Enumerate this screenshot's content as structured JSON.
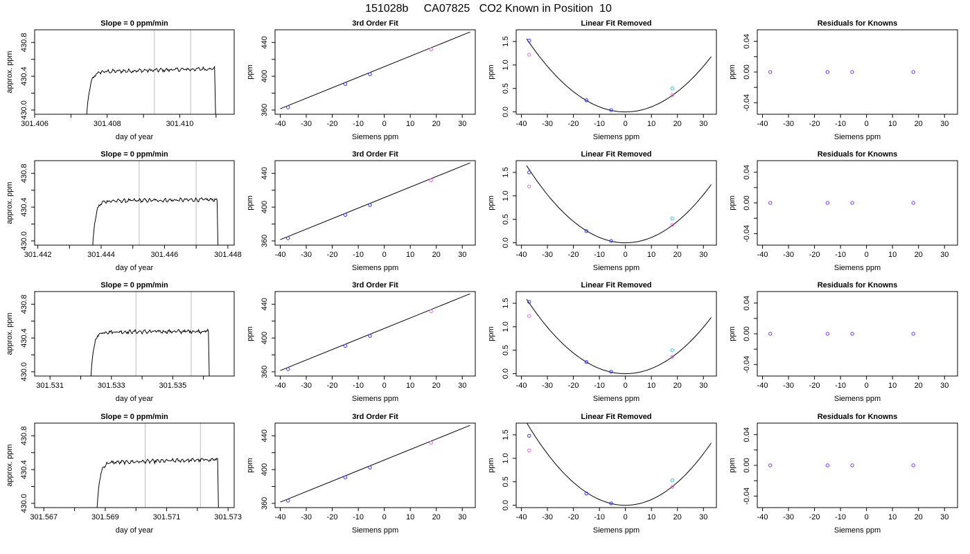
{
  "figure": {
    "title": "151028b     CA07825   CO2 Known in Position  10"
  },
  "chart_data": [
    {
      "type": "line",
      "panel": "timeseries",
      "title": "Slope =  0  ppm/min",
      "xlabel": "day of year",
      "ylabel": "approx. ppm",
      "xlim": [
        301.406,
        301.4115
      ],
      "ylim": [
        429.95,
        430.95
      ],
      "xticks": [
        301.406,
        301.407,
        301.408,
        301.409,
        301.41,
        301.411
      ],
      "xtick_labels": [
        "301.406",
        "",
        "301.408",
        "",
        "301.410",
        ""
      ],
      "yticks": [
        430.0,
        430.2,
        430.4,
        430.6,
        430.8
      ],
      "ytick_labels": [
        "430.0",
        "",
        "430.4",
        "",
        "430.8"
      ],
      "vlines": [
        301.4093,
        301.4103
      ],
      "trace": {
        "start": 301.407,
        "end": 301.411,
        "rise": 301.4074,
        "level": 430.45,
        "drift": 0.04,
        "base": 429.7
      }
    },
    {
      "type": "line",
      "panel": "timeseries",
      "title": "Slope =  0  ppm/min",
      "xlabel": "day of year",
      "ylabel": "approx. ppm",
      "xlim": [
        301.4419,
        301.4482
      ],
      "ylim": [
        429.95,
        430.95
      ],
      "xticks": [
        301.442,
        301.443,
        301.444,
        301.445,
        301.446,
        301.447,
        301.448
      ],
      "xtick_labels": [
        "301.442",
        "",
        "301.444",
        "",
        "301.446",
        "",
        "301.448"
      ],
      "yticks": [
        430.0,
        430.2,
        430.4,
        430.6,
        430.8
      ],
      "ytick_labels": [
        "430.0",
        "",
        "430.4",
        "",
        "430.8"
      ],
      "vlines": [
        301.4452,
        301.447
      ],
      "trace": {
        "start": 301.4434,
        "end": 301.4477,
        "rise": 301.4437,
        "level": 430.47,
        "drift": 0.02,
        "base": 429.7
      }
    },
    {
      "type": "line",
      "panel": "timeseries",
      "title": "Slope =  0  ppm/min",
      "xlabel": "day of year",
      "ylabel": "approx. ppm",
      "xlim": [
        301.5305,
        301.537
      ],
      "ylim": [
        429.95,
        430.95
      ],
      "xticks": [
        301.531,
        301.532,
        301.533,
        301.534,
        301.535,
        301.536
      ],
      "xtick_labels": [
        "301.531",
        "",
        "301.533",
        "",
        "301.535",
        ""
      ],
      "yticks": [
        430.0,
        430.2,
        430.4,
        430.6,
        430.8
      ],
      "ytick_labels": [
        "430.0",
        "",
        "430.4",
        "",
        "430.8"
      ],
      "vlines": [
        301.5338,
        301.5356
      ],
      "trace": {
        "start": 301.532,
        "end": 301.5362,
        "rise": 301.5323,
        "level": 430.47,
        "drift": 0.01,
        "base": 429.7
      }
    },
    {
      "type": "line",
      "panel": "timeseries",
      "title": "Slope =  0  ppm/min",
      "xlabel": "day of year",
      "ylabel": "approx. ppm",
      "xlim": [
        301.5667,
        301.5732
      ],
      "ylim": [
        429.95,
        430.95
      ],
      "xticks": [
        301.567,
        301.568,
        301.569,
        301.57,
        301.571,
        301.572,
        301.573
      ],
      "xtick_labels": [
        "301.567",
        "",
        "301.569",
        "",
        "301.571",
        "",
        "301.573"
      ],
      "yticks": [
        430.0,
        430.2,
        430.4,
        430.6,
        430.8
      ],
      "ytick_labels": [
        "430.0",
        "",
        "430.4",
        "",
        "430.8"
      ],
      "vlines": [
        301.5703,
        301.5721
      ],
      "trace": {
        "start": 301.5684,
        "end": 301.5727,
        "rise": 301.5687,
        "level": 430.48,
        "drift": 0.04,
        "base": 429.7
      }
    },
    {
      "type": "scatter",
      "panel": "fit",
      "title": "3rd Order Fit",
      "xlabel": "Siemens ppm",
      "ylabel": "ppm",
      "xlim": [
        -42,
        35
      ],
      "ylim": [
        355,
        455
      ],
      "xticks": [
        -40,
        -30,
        -20,
        -10,
        0,
        10,
        20,
        30
      ],
      "yticks": [
        360,
        400,
        440
      ],
      "minor_yticks": [
        380,
        420
      ],
      "line": {
        "x": [
          -40,
          33
        ],
        "y": [
          361.5,
          452.4
        ]
      },
      "points": [
        {
          "x": -37,
          "y": 363.2,
          "color": "#3333ff"
        },
        {
          "x": -15,
          "y": 390.8,
          "color": "#3333ff"
        },
        {
          "x": -5.5,
          "y": 402.5,
          "color": "#3333ff"
        },
        {
          "x": 18,
          "y": 431.7,
          "color": "#ee66ee"
        }
      ]
    },
    {
      "type": "scatter",
      "panel": "fit",
      "title": "3rd Order Fit",
      "xlabel": "Siemens ppm",
      "ylabel": "ppm",
      "xlim": [
        -42,
        35
      ],
      "ylim": [
        355,
        455
      ],
      "xticks": [
        -40,
        -30,
        -20,
        -10,
        0,
        10,
        20,
        30
      ],
      "yticks": [
        360,
        400,
        440
      ],
      "minor_yticks": [
        380,
        420
      ],
      "line": {
        "x": [
          -40,
          33
        ],
        "y": [
          361.5,
          452.4
        ]
      },
      "points": [
        {
          "x": -37,
          "y": 363.2,
          "color": "#3333ff"
        },
        {
          "x": -15,
          "y": 390.8,
          "color": "#3333ff"
        },
        {
          "x": -5.5,
          "y": 402.5,
          "color": "#3333ff"
        },
        {
          "x": 18,
          "y": 431.7,
          "color": "#ee66ee"
        }
      ]
    },
    {
      "type": "scatter",
      "panel": "fit",
      "title": "3rd Order Fit",
      "xlabel": "Siemens ppm",
      "ylabel": "ppm",
      "xlim": [
        -42,
        35
      ],
      "ylim": [
        355,
        455
      ],
      "xticks": [
        -40,
        -30,
        -20,
        -10,
        0,
        10,
        20,
        30
      ],
      "yticks": [
        360,
        400,
        440
      ],
      "minor_yticks": [
        380,
        420
      ],
      "line": {
        "x": [
          -40,
          33
        ],
        "y": [
          361.5,
          452.4
        ]
      },
      "points": [
        {
          "x": -37,
          "y": 363.2,
          "color": "#3333ff"
        },
        {
          "x": -15,
          "y": 390.8,
          "color": "#3333ff"
        },
        {
          "x": -5.5,
          "y": 402.5,
          "color": "#3333ff"
        },
        {
          "x": 18,
          "y": 431.7,
          "color": "#ee66ee"
        }
      ]
    },
    {
      "type": "scatter",
      "panel": "fit",
      "title": "3rd Order Fit",
      "xlabel": "Siemens ppm",
      "ylabel": "ppm",
      "xlim": [
        -42,
        35
      ],
      "ylim": [
        355,
        455
      ],
      "xticks": [
        -40,
        -30,
        -20,
        -10,
        0,
        10,
        20,
        30
      ],
      "yticks": [
        360,
        400,
        440
      ],
      "minor_yticks": [
        380,
        420
      ],
      "line": {
        "x": [
          -40,
          33
        ],
        "y": [
          361.5,
          452.4
        ]
      },
      "points": [
        {
          "x": -37,
          "y": 363.2,
          "color": "#3333ff"
        },
        {
          "x": -15,
          "y": 390.8,
          "color": "#3333ff"
        },
        {
          "x": -5.5,
          "y": 402.5,
          "color": "#3333ff"
        },
        {
          "x": 18,
          "y": 431.7,
          "color": "#ee66ee"
        }
      ]
    },
    {
      "type": "scatter",
      "panel": "linear",
      "title": "Linear Fit Removed",
      "xlabel": "Siemens ppm",
      "ylabel": "ppm",
      "xlim": [
        -42,
        35
      ],
      "ylim": [
        -0.05,
        1.75
      ],
      "xticks": [
        -40,
        -30,
        -20,
        -10,
        0,
        10,
        20,
        30
      ],
      "yticks": [
        0.0,
        0.5,
        1.0,
        1.5
      ],
      "ytick_labels": [
        "0.0",
        "0.5",
        "1.0",
        "1.5"
      ],
      "curve_coef": 0.00108,
      "curve_x": [
        -38,
        33
      ],
      "points": [
        {
          "x": -37,
          "y": 1.52,
          "color": "#3333ff"
        },
        {
          "x": -37,
          "y": 1.22,
          "color": "#ee66ee"
        },
        {
          "x": -15,
          "y": 0.25,
          "color": "#3333ff"
        },
        {
          "x": -5.5,
          "y": 0.04,
          "color": "#3333ff"
        },
        {
          "x": 18,
          "y": 0.5,
          "color": "#22ccee"
        },
        {
          "x": 18,
          "y": 0.36,
          "color": "#ee66ee"
        }
      ]
    },
    {
      "type": "scatter",
      "panel": "linear",
      "title": "Linear Fit Removed",
      "xlabel": "Siemens ppm",
      "ylabel": "ppm",
      "xlim": [
        -42,
        35
      ],
      "ylim": [
        -0.05,
        1.75
      ],
      "xticks": [
        -40,
        -30,
        -20,
        -10,
        0,
        10,
        20,
        30
      ],
      "yticks": [
        0.0,
        0.5,
        1.0,
        1.5
      ],
      "ytick_labels": [
        "0.0",
        "0.5",
        "1.0",
        "1.5"
      ],
      "curve_coef": 0.00114,
      "curve_x": [
        -38,
        33
      ],
      "points": [
        {
          "x": -37,
          "y": 1.5,
          "color": "#3333ff"
        },
        {
          "x": -37,
          "y": 1.2,
          "color": "#ee66ee"
        },
        {
          "x": -15,
          "y": 0.25,
          "color": "#3333ff"
        },
        {
          "x": -5.5,
          "y": 0.04,
          "color": "#3333ff"
        },
        {
          "x": 18,
          "y": 0.52,
          "color": "#22ccee"
        },
        {
          "x": 18,
          "y": 0.38,
          "color": "#ee66ee"
        }
      ]
    },
    {
      "type": "scatter",
      "panel": "linear",
      "title": "Linear Fit Removed",
      "xlabel": "Siemens ppm",
      "ylabel": "ppm",
      "xlim": [
        -42,
        35
      ],
      "ylim": [
        -0.05,
        1.75
      ],
      "xticks": [
        -40,
        -30,
        -20,
        -10,
        0,
        10,
        20,
        30
      ],
      "yticks": [
        0.0,
        0.5,
        1.0,
        1.5
      ],
      "ytick_labels": [
        "0.0",
        "0.5",
        "1.0",
        "1.5"
      ],
      "curve_coef": 0.0011,
      "curve_x": [
        -38,
        33
      ],
      "points": [
        {
          "x": -37,
          "y": 1.53,
          "color": "#3333ff"
        },
        {
          "x": -37,
          "y": 1.23,
          "color": "#ee66ee"
        },
        {
          "x": -15,
          "y": 0.25,
          "color": "#3333ff"
        },
        {
          "x": -5.5,
          "y": 0.04,
          "color": "#3333ff"
        },
        {
          "x": 18,
          "y": 0.5,
          "color": "#22ccee"
        },
        {
          "x": 18,
          "y": 0.36,
          "color": "#ee66ee"
        }
      ]
    },
    {
      "type": "scatter",
      "panel": "linear",
      "title": "Linear Fit Removed",
      "xlabel": "Siemens ppm",
      "ylabel": "ppm",
      "xlim": [
        -42,
        35
      ],
      "ylim": [
        -0.05,
        1.75
      ],
      "xticks": [
        -40,
        -30,
        -20,
        -10,
        0,
        10,
        20,
        30
      ],
      "yticks": [
        0.0,
        0.5,
        1.0,
        1.5
      ],
      "ytick_labels": [
        "0.0",
        "0.5",
        "1.0",
        "1.5"
      ],
      "curve_coef": 0.00122,
      "curve_x": [
        -38,
        33
      ],
      "points": [
        {
          "x": -37,
          "y": 1.48,
          "color": "#3333ff"
        },
        {
          "x": -37,
          "y": 1.17,
          "color": "#ee66ee"
        },
        {
          "x": -15,
          "y": 0.25,
          "color": "#3333ff"
        },
        {
          "x": -5.5,
          "y": 0.04,
          "color": "#3333ff"
        },
        {
          "x": 18,
          "y": 0.53,
          "color": "#22ccee"
        },
        {
          "x": 18,
          "y": 0.39,
          "color": "#ee66ee"
        }
      ]
    },
    {
      "type": "scatter",
      "panel": "residuals",
      "title": "Residuals for Knowns",
      "xlabel": "Siemens ppm",
      "ylabel": "ppm",
      "xlim": [
        -42,
        35
      ],
      "ylim": [
        -0.055,
        0.055
      ],
      "xticks": [
        -40,
        -30,
        -20,
        -10,
        0,
        10,
        20,
        30
      ],
      "yticks": [
        -0.04,
        0.0,
        0.04
      ],
      "ytick_labels": [
        "-0.04",
        "0.00",
        "0.04"
      ],
      "minor_yticks": [
        -0.02,
        0.02
      ],
      "points": [
        {
          "x": -37,
          "y": 0,
          "color": "#7733ee"
        },
        {
          "x": -15,
          "y": 0,
          "color": "#7733ee"
        },
        {
          "x": -5.5,
          "y": 0,
          "color": "#7733ee"
        },
        {
          "x": 18,
          "y": 0,
          "color": "#7733ee"
        }
      ]
    },
    {
      "type": "scatter",
      "panel": "residuals",
      "title": "Residuals for Knowns",
      "xlabel": "Siemens ppm",
      "ylabel": "ppm",
      "xlim": [
        -42,
        35
      ],
      "ylim": [
        -0.055,
        0.055
      ],
      "xticks": [
        -40,
        -30,
        -20,
        -10,
        0,
        10,
        20,
        30
      ],
      "yticks": [
        -0.04,
        0.0,
        0.04
      ],
      "ytick_labels": [
        "-0.04",
        "0.00",
        "0.04"
      ],
      "minor_yticks": [
        -0.02,
        0.02
      ],
      "points": [
        {
          "x": -37,
          "y": 0,
          "color": "#7733ee"
        },
        {
          "x": -15,
          "y": 0,
          "color": "#7733ee"
        },
        {
          "x": -5.5,
          "y": 0,
          "color": "#7733ee"
        },
        {
          "x": 18,
          "y": 0,
          "color": "#7733ee"
        }
      ]
    },
    {
      "type": "scatter",
      "panel": "residuals",
      "title": "Residuals for Knowns",
      "xlabel": "Siemens ppm",
      "ylabel": "ppm",
      "xlim": [
        -42,
        35
      ],
      "ylim": [
        -0.055,
        0.055
      ],
      "xticks": [
        -40,
        -30,
        -20,
        -10,
        0,
        10,
        20,
        30
      ],
      "yticks": [
        -0.04,
        0.0,
        0.04
      ],
      "ytick_labels": [
        "-0.04",
        "0.00",
        "0.04"
      ],
      "minor_yticks": [
        -0.02,
        0.02
      ],
      "points": [
        {
          "x": -37,
          "y": 0,
          "color": "#7733ee"
        },
        {
          "x": -15,
          "y": 0,
          "color": "#7733ee"
        },
        {
          "x": -5.5,
          "y": 0,
          "color": "#7733ee"
        },
        {
          "x": 18,
          "y": 0,
          "color": "#7733ee"
        }
      ]
    },
    {
      "type": "scatter",
      "panel": "residuals",
      "title": "Residuals for Knowns",
      "xlabel": "Siemens ppm",
      "ylabel": "ppm",
      "xlim": [
        -42,
        35
      ],
      "ylim": [
        -0.055,
        0.055
      ],
      "xticks": [
        -40,
        -30,
        -20,
        -10,
        0,
        10,
        20,
        30
      ],
      "yticks": [
        -0.04,
        0.0,
        0.04
      ],
      "ytick_labels": [
        "-0.04",
        "0.00",
        "0.04"
      ],
      "minor_yticks": [
        -0.02,
        0.02
      ],
      "points": [
        {
          "x": -37,
          "y": 0,
          "color": "#7733ee"
        },
        {
          "x": -15,
          "y": 0,
          "color": "#7733ee"
        },
        {
          "x": -5.5,
          "y": 0,
          "color": "#7733ee"
        },
        {
          "x": 18,
          "y": 0,
          "color": "#7733ee"
        }
      ]
    }
  ]
}
